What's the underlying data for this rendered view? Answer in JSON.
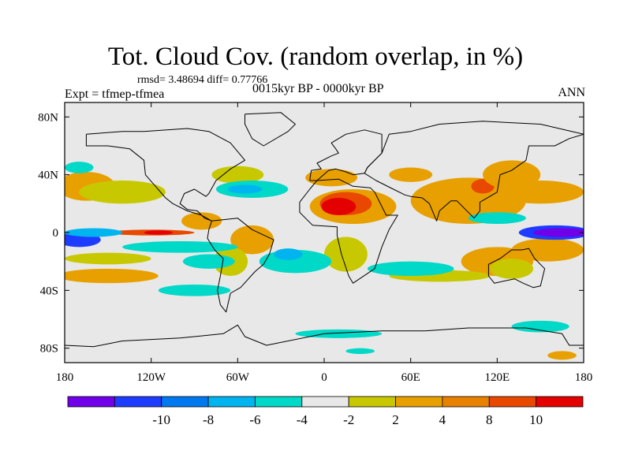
{
  "header": {
    "title": "Tot. Cloud Cov. (random overlap, in %)",
    "stats": "rmsd= 3.48694 diff= 0.77766",
    "experiment": "Expt = tfmep-tfmea",
    "period": "0015kyr BP - 0000kyr BP",
    "season": "ANN"
  },
  "map": {
    "lon_range": [
      -180,
      180
    ],
    "lat_range": [
      -90,
      90
    ],
    "background_color": "#e8e8e8",
    "x_ticks": [
      {
        "lon": -180,
        "label": "180"
      },
      {
        "lon": -120,
        "label": "120W"
      },
      {
        "lon": -60,
        "label": "60W"
      },
      {
        "lon": 0,
        "label": "0"
      },
      {
        "lon": 60,
        "label": "60E"
      },
      {
        "lon": 120,
        "label": "120E"
      },
      {
        "lon": 180,
        "label": "180"
      }
    ],
    "y_ticks": [
      {
        "lat": 80,
        "label": "80N"
      },
      {
        "lat": 40,
        "label": "40N"
      },
      {
        "lat": 0,
        "label": "0"
      },
      {
        "lat": -40,
        "label": "40S"
      },
      {
        "lat": -80,
        "label": "80S"
      }
    ],
    "anomaly_patches": [
      {
        "lon": 20,
        "lat": 18,
        "rx": 30,
        "ry": 12,
        "color": "#e8a000"
      },
      {
        "lon": 15,
        "lat": 20,
        "rx": 18,
        "ry": 8,
        "color": "#e84800"
      },
      {
        "lon": 10,
        "lat": 18,
        "rx": 12,
        "ry": 6,
        "color": "#e40000"
      },
      {
        "lon": 5,
        "lat": 38,
        "rx": 18,
        "ry": 6,
        "color": "#e8a000"
      },
      {
        "lon": 60,
        "lat": 40,
        "rx": 15,
        "ry": 5,
        "color": "#e8a000"
      },
      {
        "lon": 100,
        "lat": 22,
        "rx": 40,
        "ry": 16,
        "color": "#e8a000"
      },
      {
        "lon": 110,
        "lat": 32,
        "rx": 8,
        "ry": 5,
        "color": "#e84800"
      },
      {
        "lon": 130,
        "lat": 40,
        "rx": 20,
        "ry": 10,
        "color": "#e8a000"
      },
      {
        "lon": 150,
        "lat": 28,
        "rx": 30,
        "ry": 8,
        "color": "#e8a000"
      },
      {
        "lon": -165,
        "lat": 32,
        "rx": 20,
        "ry": 10,
        "color": "#e8a000"
      },
      {
        "lon": -140,
        "lat": 28,
        "rx": 30,
        "ry": 8,
        "color": "#c8c800"
      },
      {
        "lon": -60,
        "lat": 40,
        "rx": 18,
        "ry": 6,
        "color": "#c8c800"
      },
      {
        "lon": -85,
        "lat": 8,
        "rx": 14,
        "ry": 6,
        "color": "#e8a000"
      },
      {
        "lon": -50,
        "lat": -5,
        "rx": 15,
        "ry": 10,
        "color": "#e8a000"
      },
      {
        "lon": -65,
        "lat": -20,
        "rx": 12,
        "ry": 10,
        "color": "#c8c800"
      },
      {
        "lon": -120,
        "lat": 0,
        "rx": 30,
        "ry": 2,
        "color": "#e84800"
      },
      {
        "lon": -115,
        "lat": 0,
        "rx": 10,
        "ry": 1.5,
        "color": "#e40000"
      },
      {
        "lon": 15,
        "lat": -15,
        "rx": 15,
        "ry": 12,
        "color": "#c8c800"
      },
      {
        "lon": 120,
        "lat": -20,
        "rx": 25,
        "ry": 10,
        "color": "#e8a000"
      },
      {
        "lon": 155,
        "lat": -12,
        "rx": 25,
        "ry": 8,
        "color": "#e8a000"
      },
      {
        "lon": 130,
        "lat": -25,
        "rx": 15,
        "ry": 7,
        "color": "#c8c800"
      },
      {
        "lon": -150,
        "lat": -30,
        "rx": 35,
        "ry": 5,
        "color": "#e8a000"
      },
      {
        "lon": -150,
        "lat": -18,
        "rx": 30,
        "ry": 4,
        "color": "#c8c800"
      },
      {
        "lon": 80,
        "lat": -30,
        "rx": 35,
        "ry": 4,
        "color": "#c8c800"
      },
      {
        "lon": 165,
        "lat": -85,
        "rx": 10,
        "ry": 3,
        "color": "#e8a000"
      },
      {
        "lon": 160,
        "lat": 0,
        "rx": 25,
        "ry": 5,
        "color": "#1e3cff"
      },
      {
        "lon": 165,
        "lat": 0,
        "rx": 20,
        "ry": 3,
        "color": "#7000e8"
      },
      {
        "lon": -170,
        "lat": -5,
        "rx": 15,
        "ry": 5,
        "color": "#1e3cff"
      },
      {
        "lon": -160,
        "lat": 0,
        "rx": 20,
        "ry": 3,
        "color": "#00b4f0"
      },
      {
        "lon": -100,
        "lat": -10,
        "rx": 40,
        "ry": 4,
        "color": "#00d8c8"
      },
      {
        "lon": -80,
        "lat": -20,
        "rx": 18,
        "ry": 5,
        "color": "#00d8c8"
      },
      {
        "lon": -20,
        "lat": -20,
        "rx": 25,
        "ry": 8,
        "color": "#00d8c8"
      },
      {
        "lon": -25,
        "lat": -15,
        "rx": 10,
        "ry": 4,
        "color": "#00b4f0"
      },
      {
        "lon": -50,
        "lat": 30,
        "rx": 25,
        "ry": 6,
        "color": "#00d8c8"
      },
      {
        "lon": -55,
        "lat": 30,
        "rx": 12,
        "ry": 3,
        "color": "#00b4f0"
      },
      {
        "lon": 60,
        "lat": -25,
        "rx": 30,
        "ry": 5,
        "color": "#00d8c8"
      },
      {
        "lon": 120,
        "lat": 10,
        "rx": 20,
        "ry": 4,
        "color": "#00d8c8"
      },
      {
        "lon": -170,
        "lat": 45,
        "rx": 10,
        "ry": 4,
        "color": "#00d8c8"
      },
      {
        "lon": 10,
        "lat": -70,
        "rx": 30,
        "ry": 3,
        "color": "#00d8c8"
      },
      {
        "lon": 25,
        "lat": -82,
        "rx": 10,
        "ry": 2,
        "color": "#00d8c8"
      },
      {
        "lon": -90,
        "lat": -40,
        "rx": 25,
        "ry": 4,
        "color": "#00d8c8"
      },
      {
        "lon": 150,
        "lat": -65,
        "rx": 20,
        "ry": 4,
        "color": "#00d8c8"
      }
    ],
    "land_outlines": [
      {
        "name": "north-america",
        "points": [
          [
            -165,
            68
          ],
          [
            -140,
            70
          ],
          [
            -125,
            70
          ],
          [
            -95,
            72
          ],
          [
            -80,
            70
          ],
          [
            -65,
            62
          ],
          [
            -55,
            50
          ],
          [
            -65,
            44
          ],
          [
            -75,
            36
          ],
          [
            -80,
            27
          ],
          [
            -82,
            25
          ],
          [
            -90,
            30
          ],
          [
            -97,
            27
          ],
          [
            -100,
            20
          ],
          [
            -95,
            16
          ],
          [
            -88,
            15
          ],
          [
            -83,
            10
          ],
          [
            -78,
            8
          ],
          [
            -85,
            12
          ],
          [
            -95,
            15
          ],
          [
            -105,
            20
          ],
          [
            -110,
            24
          ],
          [
            -117,
            32
          ],
          [
            -124,
            40
          ],
          [
            -125,
            50
          ],
          [
            -135,
            58
          ],
          [
            -150,
            60
          ],
          [
            -165,
            60
          ],
          [
            -165,
            68
          ]
        ]
      },
      {
        "name": "greenland",
        "points": [
          [
            -55,
            82
          ],
          [
            -30,
            83
          ],
          [
            -20,
            75
          ],
          [
            -25,
            70
          ],
          [
            -42,
            60
          ],
          [
            -50,
            65
          ],
          [
            -55,
            75
          ],
          [
            -55,
            82
          ]
        ]
      },
      {
        "name": "south-america",
        "points": [
          [
            -78,
            8
          ],
          [
            -60,
            10
          ],
          [
            -50,
            2
          ],
          [
            -35,
            -5
          ],
          [
            -38,
            -15
          ],
          [
            -42,
            -22
          ],
          [
            -48,
            -27
          ],
          [
            -58,
            -38
          ],
          [
            -65,
            -42
          ],
          [
            -68,
            -55
          ],
          [
            -72,
            -50
          ],
          [
            -74,
            -40
          ],
          [
            -72,
            -30
          ],
          [
            -70,
            -18
          ],
          [
            -76,
            -12
          ],
          [
            -81,
            -4
          ],
          [
            -80,
            2
          ],
          [
            -78,
            8
          ]
        ]
      },
      {
        "name": "africa",
        "points": [
          [
            -17,
            21
          ],
          [
            -10,
            30
          ],
          [
            -5,
            36
          ],
          [
            10,
            37
          ],
          [
            20,
            32
          ],
          [
            32,
            31
          ],
          [
            35,
            28
          ],
          [
            43,
            12
          ],
          [
            51,
            12
          ],
          [
            45,
            2
          ],
          [
            40,
            -10
          ],
          [
            35,
            -25
          ],
          [
            20,
            -35
          ],
          [
            17,
            -30
          ],
          [
            12,
            -15
          ],
          [
            9,
            -2
          ],
          [
            9,
            4
          ],
          [
            -8,
            5
          ],
          [
            -17,
            14
          ],
          [
            -17,
            21
          ]
        ]
      },
      {
        "name": "europe",
        "points": [
          [
            -10,
            36
          ],
          [
            -9,
            43
          ],
          [
            -2,
            44
          ],
          [
            -5,
            48
          ],
          [
            5,
            53
          ],
          [
            10,
            55
          ],
          [
            8,
            58
          ],
          [
            5,
            62
          ],
          [
            15,
            68
          ],
          [
            28,
            71
          ],
          [
            40,
            68
          ],
          [
            40,
            55
          ],
          [
            30,
            45
          ],
          [
            28,
            41
          ],
          [
            20,
            40
          ],
          [
            15,
            42
          ],
          [
            8,
            44
          ],
          [
            3,
            43
          ],
          [
            -5,
            36
          ],
          [
            -10,
            36
          ]
        ]
      },
      {
        "name": "asia",
        "points": [
          [
            28,
            41
          ],
          [
            36,
            36
          ],
          [
            48,
            30
          ],
          [
            56,
            26
          ],
          [
            60,
            25
          ],
          [
            68,
            24
          ],
          [
            73,
            20
          ],
          [
            78,
            8
          ],
          [
            80,
            15
          ],
          [
            88,
            22
          ],
          [
            92,
            22
          ],
          [
            98,
            16
          ],
          [
            104,
            10
          ],
          [
            108,
            15
          ],
          [
            108,
            21
          ],
          [
            120,
            28
          ],
          [
            122,
            40
          ],
          [
            130,
            43
          ],
          [
            140,
            50
          ],
          [
            142,
            60
          ],
          [
            160,
            60
          ],
          [
            170,
            65
          ],
          [
            180,
            68
          ],
          [
            150,
            75
          ],
          [
            110,
            77
          ],
          [
            80,
            75
          ],
          [
            60,
            70
          ],
          [
            45,
            68
          ],
          [
            40,
            55
          ],
          [
            30,
            45
          ],
          [
            28,
            41
          ]
        ]
      },
      {
        "name": "australia",
        "points": [
          [
            114,
            -22
          ],
          [
            122,
            -18
          ],
          [
            130,
            -12
          ],
          [
            137,
            -12
          ],
          [
            142,
            -11
          ],
          [
            146,
            -18
          ],
          [
            153,
            -25
          ],
          [
            150,
            -37
          ],
          [
            145,
            -38
          ],
          [
            138,
            -35
          ],
          [
            132,
            -32
          ],
          [
            118,
            -35
          ],
          [
            114,
            -30
          ],
          [
            114,
            -22
          ]
        ]
      },
      {
        "name": "antarctica",
        "points": [
          [
            -180,
            -78
          ],
          [
            -160,
            -79
          ],
          [
            -140,
            -75
          ],
          [
            -100,
            -73
          ],
          [
            -70,
            -70
          ],
          [
            -60,
            -64
          ],
          [
            -55,
            -72
          ],
          [
            -40,
            -78
          ],
          [
            0,
            -70
          ],
          [
            40,
            -68
          ],
          [
            70,
            -68
          ],
          [
            100,
            -66
          ],
          [
            140,
            -66
          ],
          [
            165,
            -70
          ],
          [
            170,
            -78
          ],
          [
            180,
            -78
          ]
        ]
      }
    ]
  },
  "colorbar": {
    "colors": [
      "#7000e8",
      "#1e3cff",
      "#0078f0",
      "#00b4f0",
      "#00d8c8",
      "#e8e8e8",
      "#c8c800",
      "#e8a000",
      "#e88000",
      "#e84800",
      "#e40000"
    ],
    "labels": [
      "-10",
      "-8",
      "-6",
      "-4",
      "-2",
      "2",
      "4",
      "8",
      "10"
    ]
  }
}
